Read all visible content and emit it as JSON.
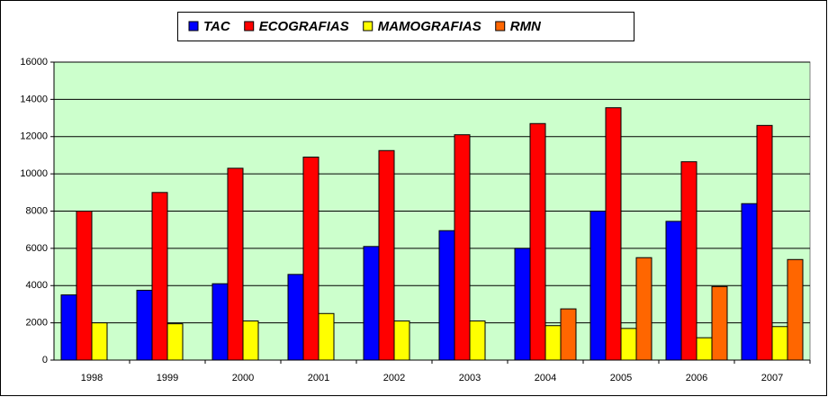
{
  "chart_data": {
    "type": "bar",
    "categories": [
      "1998",
      "1999",
      "2000",
      "2001",
      "2002",
      "2003",
      "2004",
      "2005",
      "2006",
      "2007"
    ],
    "series": [
      {
        "name": "TAC",
        "color": "#0000ff",
        "values": [
          3500,
          3750,
          4100,
          4600,
          6100,
          6950,
          6000,
          8000,
          7450,
          8400
        ]
      },
      {
        "name": "ECOGRAFIAS",
        "color": "#ff0000",
        "values": [
          8000,
          9000,
          10300,
          10900,
          11250,
          12100,
          12700,
          13550,
          10650,
          12600
        ]
      },
      {
        "name": "MAMOGRAFIAS",
        "color": "#ffff00",
        "values": [
          2000,
          1950,
          2100,
          2500,
          2100,
          2100,
          1850,
          1700,
          1200,
          1800
        ]
      },
      {
        "name": "RMN",
        "color": "#ff6600",
        "values": [
          null,
          null,
          null,
          null,
          null,
          null,
          2750,
          5500,
          3950,
          5400
        ]
      }
    ],
    "ylim": [
      0,
      16000
    ],
    "yticks": [
      0,
      2000,
      4000,
      6000,
      8000,
      10000,
      12000,
      14000,
      16000
    ],
    "grid": true,
    "legend": "top",
    "plot_background": "#ccffcc"
  }
}
